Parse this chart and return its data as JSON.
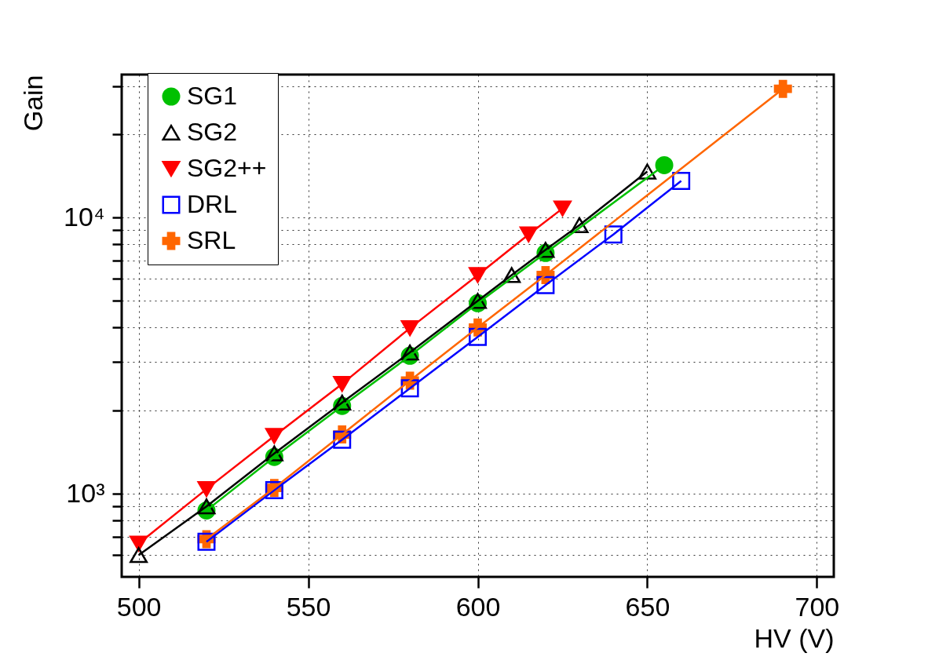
{
  "chart_data": {
    "type": "line",
    "xlabel": "HV (V)",
    "ylabel": "Gain",
    "log": "y",
    "grid": true,
    "legend": "top left",
    "line_style": "solid",
    "xlim": [
      495,
      705
    ],
    "xticks": [
      500,
      550,
      600,
      650,
      700
    ],
    "ylim": [
      500,
      33000
    ],
    "yticks": [
      {
        "value": 600,
        "label": null
      },
      {
        "value": 700,
        "label": null
      },
      {
        "value": 800,
        "label": null
      },
      {
        "value": 900,
        "label": null
      },
      {
        "value": 1000,
        "label": "10³"
      },
      {
        "value": 2000,
        "label": null
      },
      {
        "value": 3000,
        "label": null
      },
      {
        "value": 4000,
        "label": null
      },
      {
        "value": 5000,
        "label": null
      },
      {
        "value": 6000,
        "label": null
      },
      {
        "value": 7000,
        "label": null
      },
      {
        "value": 8000,
        "label": null
      },
      {
        "value": 9000,
        "label": null
      },
      {
        "value": 10000,
        "label": "10⁴"
      },
      {
        "value": 20000,
        "label": null
      },
      {
        "value": 30000,
        "label": null
      }
    ],
    "series": [
      {
        "name": "SG1",
        "color": "#00c000",
        "marker": "circle",
        "x": [
          520,
          540,
          560,
          580,
          600,
          620,
          655
        ],
        "values": [
          870,
          1360,
          2080,
          3160,
          4900,
          7450,
          15500
        ]
      },
      {
        "name": "SG2",
        "color": "#000000",
        "marker": "triangle",
        "x": [
          500,
          520,
          540,
          560,
          580,
          600,
          610,
          620,
          630,
          650
        ],
        "values": [
          600,
          900,
          1400,
          2140,
          3250,
          5000,
          6200,
          7650,
          9400,
          14700
        ]
      },
      {
        "name": "SG2++",
        "color": "#ff0000",
        "marker": "triangle-down",
        "x": [
          500,
          520,
          540,
          560,
          580,
          600,
          615,
          625
        ],
        "values": [
          660,
          1040,
          1620,
          2500,
          3980,
          6200,
          8700,
          10800
        ]
      },
      {
        "name": "DRL",
        "color": "#0000ff",
        "marker": "square",
        "x": [
          520,
          540,
          560,
          580,
          600,
          620,
          640,
          660
        ],
        "values": [
          670,
          1030,
          1570,
          2410,
          3700,
          5700,
          8700,
          13600
        ]
      },
      {
        "name": "SRL",
        "color": "#ff6600",
        "marker": "cross",
        "x": [
          520,
          540,
          560,
          580,
          600,
          620,
          690
        ],
        "values": [
          685,
          1050,
          1640,
          2570,
          4000,
          6200,
          29300
        ]
      }
    ]
  }
}
